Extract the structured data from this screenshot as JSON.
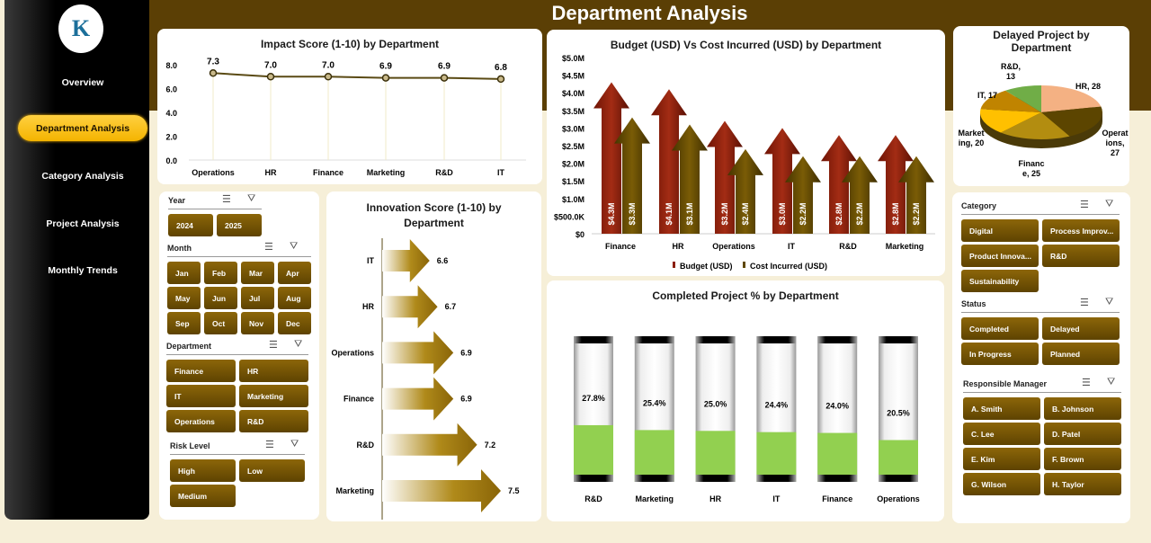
{
  "header": {
    "title": "Department Analysis"
  },
  "sidebar": {
    "logo_text": "K",
    "items": [
      {
        "label": "Overview",
        "active": false
      },
      {
        "label": "Department Analysis",
        "active": true
      },
      {
        "label": "Category Analysis",
        "active": false
      },
      {
        "label": "Project Analysis",
        "active": false
      },
      {
        "label": "Monthly Trends",
        "active": false
      }
    ]
  },
  "slicers_left": [
    {
      "label": "Year",
      "items": [
        "2024",
        "2025"
      ]
    },
    {
      "label": "Month",
      "items": [
        "Jan",
        "Feb",
        "Mar",
        "Apr",
        "May",
        "Jun",
        "Jul",
        "Aug",
        "Sep",
        "Oct",
        "Nov",
        "Dec"
      ]
    },
    {
      "label": "Department",
      "items": [
        "Finance",
        "HR",
        "IT",
        "Marketing",
        "Operations",
        "R&D"
      ]
    },
    {
      "label": "Risk Level",
      "items": [
        "High",
        "Low",
        "Medium"
      ]
    }
  ],
  "slicers_right": [
    {
      "label": "Category",
      "items": [
        "Digital",
        "Process Improv...",
        "Product Innova...",
        "R&D",
        "Sustainability"
      ]
    },
    {
      "label": "Status",
      "items": [
        "Completed",
        "Delayed",
        "In Progress",
        "Planned"
      ]
    },
    {
      "label": "Responsible Manager",
      "items": [
        "A. Smith",
        "B. Johnson",
        "C. Lee",
        "D. Patel",
        "E. Kim",
        "F. Brown",
        "G. Wilson",
        "H. Taylor"
      ]
    }
  ],
  "icons": {
    "multiselect": "multi-select-icon",
    "clear_filter": "clear-filter-icon"
  },
  "chart_data": [
    {
      "type": "line",
      "title": "Impact Score (1-10) by Department",
      "categories": [
        "Operations",
        "HR",
        "Finance",
        "Marketing",
        "R&D",
        "IT"
      ],
      "values": [
        7.3,
        7.0,
        7.0,
        6.9,
        6.9,
        6.8
      ],
      "labels": [
        "7.3",
        "7.0",
        "7.0",
        "6.9",
        "6.9",
        "6.8"
      ],
      "ylim": [
        0,
        8
      ],
      "yticks": [
        "0.0",
        "2.0",
        "4.0",
        "6.0",
        "8.0"
      ],
      "color": "#5a4a14"
    },
    {
      "type": "bar",
      "title": "Budget (USD) Vs Cost Incurred (USD) by Department",
      "categories": [
        "Finance",
        "HR",
        "Operations",
        "IT",
        "R&D",
        "Marketing"
      ],
      "series": [
        {
          "name": "Budget (USD)",
          "values": [
            4.3,
            4.1,
            3.2,
            3.0,
            2.8,
            2.8
          ],
          "labels": [
            "$4.3M",
            "$4.1M",
            "$3.2M",
            "$3.0M",
            "$2.8M",
            "$2.8M"
          ],
          "color": "#8b1e0c"
        },
        {
          "name": "Cost Incurred (USD)",
          "values": [
            3.3,
            3.1,
            2.4,
            2.2,
            2.2,
            2.2
          ],
          "labels": [
            "$3.3M",
            "$3.1M",
            "$2.4M",
            "$2.2M",
            "$2.2M",
            "$2.2M"
          ],
          "color": "#5e4700"
        }
      ],
      "ylim": [
        0,
        5
      ],
      "yticks": [
        "$0",
        "$500.0K",
        "$1.0M",
        "$1.5M",
        "$2.0M",
        "$2.5M",
        "$3.0M",
        "$3.5M",
        "$4.0M",
        "$4.5M",
        "$5.0M"
      ],
      "legend": "bottom"
    },
    {
      "type": "pie",
      "title": "Delayed Project by Department",
      "categories": [
        "HR",
        "Operations",
        "Finance",
        "Marketing",
        "IT",
        "R&D"
      ],
      "values": [
        28,
        27,
        25,
        20,
        17,
        13
      ],
      "labels": [
        "HR, 28",
        "Operations, 27",
        "Finance, 25",
        "Marketing, 20",
        "IT, 17",
        "R&D, 13"
      ],
      "colors": [
        "#f4b183",
        "#5c4500",
        "#b38d10",
        "#ffc000",
        "#c08400",
        "#70ad47"
      ]
    },
    {
      "type": "bar",
      "orientation": "horizontal",
      "title": "Innovation Score (1-10) by Department",
      "categories": [
        "IT",
        "HR",
        "Operations",
        "Finance",
        "R&D",
        "Marketing"
      ],
      "values": [
        6.6,
        6.7,
        6.9,
        6.9,
        7.2,
        7.5
      ],
      "labels": [
        "6.6",
        "6.7",
        "6.9",
        "6.9",
        "7.2",
        "7.5"
      ],
      "color": "#8a6508"
    },
    {
      "type": "bar",
      "title": "Completed Project % by Department",
      "categories": [
        "R&D",
        "Marketing",
        "HR",
        "IT",
        "Finance",
        "Operations"
      ],
      "values": [
        27.8,
        25.4,
        25.0,
        24.4,
        24.0,
        20.5
      ],
      "labels": [
        "27.8%",
        "25.4%",
        "25.0%",
        "24.4%",
        "24.0%",
        "20.5%"
      ],
      "ylim": [
        0,
        100
      ],
      "color": "#92d050"
    }
  ]
}
